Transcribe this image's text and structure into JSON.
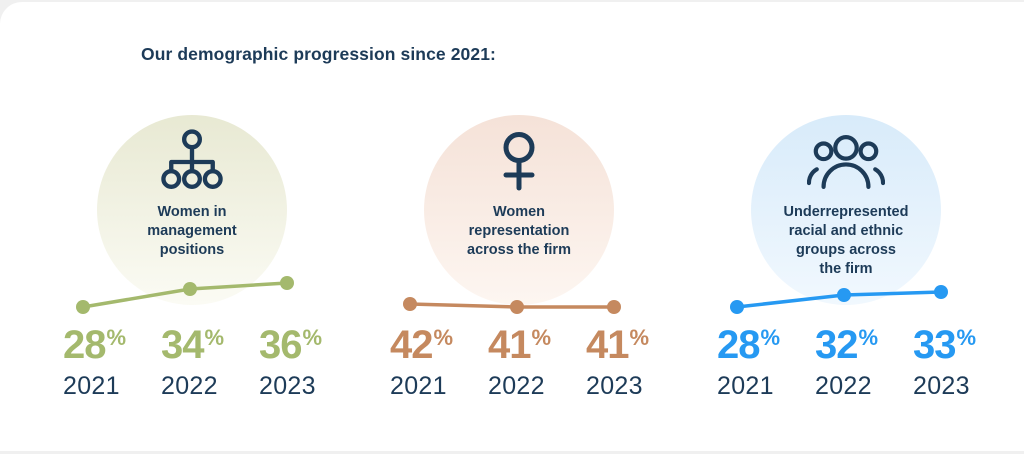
{
  "page": {
    "title": "Our demographic progression since 2021:"
  },
  "labels": {
    "percent": "%"
  },
  "colors": {
    "navy": "#1d3b58",
    "background": "#ffffff",
    "page_background": "#f0f0f0"
  },
  "panels": [
    {
      "label": "Women in\nmanagement\npositions",
      "icon": "org-chart-icon",
      "accent": "#a4b96d",
      "circle_top": "#e8e9d3",
      "circle_bottom": "#fbfbf4"
    },
    {
      "label": "Women\nrepresentation\nacross the firm",
      "icon": "female-symbol-icon",
      "accent": "#c5895f",
      "circle_top": "#f5e2d8",
      "circle_bottom": "#fdf6f1"
    },
    {
      "label": "Underrepresented\nracial and ethnic\ngroups across\nthe firm",
      "icon": "people-group-icon",
      "accent": "#2699f2",
      "circle_top": "#d8ebfa",
      "circle_bottom": "#f1f8fe"
    }
  ],
  "chart_data": [
    {
      "type": "line",
      "title": "Women in management positions",
      "categories": [
        "2021",
        "2022",
        "2023"
      ],
      "values": [
        28,
        34,
        36
      ],
      "unit": "%",
      "line_color": "#a4b96d",
      "legend_position": "none",
      "grid": false
    },
    {
      "type": "line",
      "title": "Women representation across the firm",
      "categories": [
        "2021",
        "2022",
        "2023"
      ],
      "values": [
        42,
        41,
        41
      ],
      "unit": "%",
      "line_color": "#c5895f",
      "legend_position": "none",
      "grid": false
    },
    {
      "type": "line",
      "title": "Underrepresented racial and ethnic groups across the firm",
      "categories": [
        "2021",
        "2022",
        "2023"
      ],
      "values": [
        28,
        32,
        33
      ],
      "unit": "%",
      "line_color": "#2699f2",
      "legend_position": "none",
      "grid": false
    }
  ]
}
